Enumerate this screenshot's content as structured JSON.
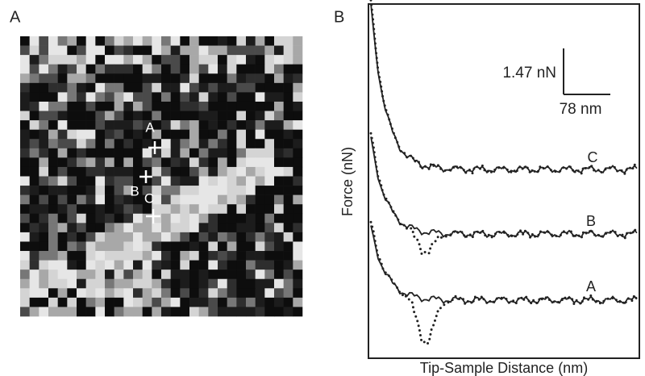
{
  "panels": [
    {
      "label": "A",
      "markers": [
        "A",
        "B",
        "C"
      ]
    },
    {
      "label": "B",
      "scale_bar": {
        "y": "1.47 nN",
        "x": "78 nm"
      },
      "y_label": "Force (nN)",
      "x_label": "Tip-Sample Distance (nm)",
      "curve_labels": [
        "C",
        "B",
        "A"
      ]
    }
  ]
}
